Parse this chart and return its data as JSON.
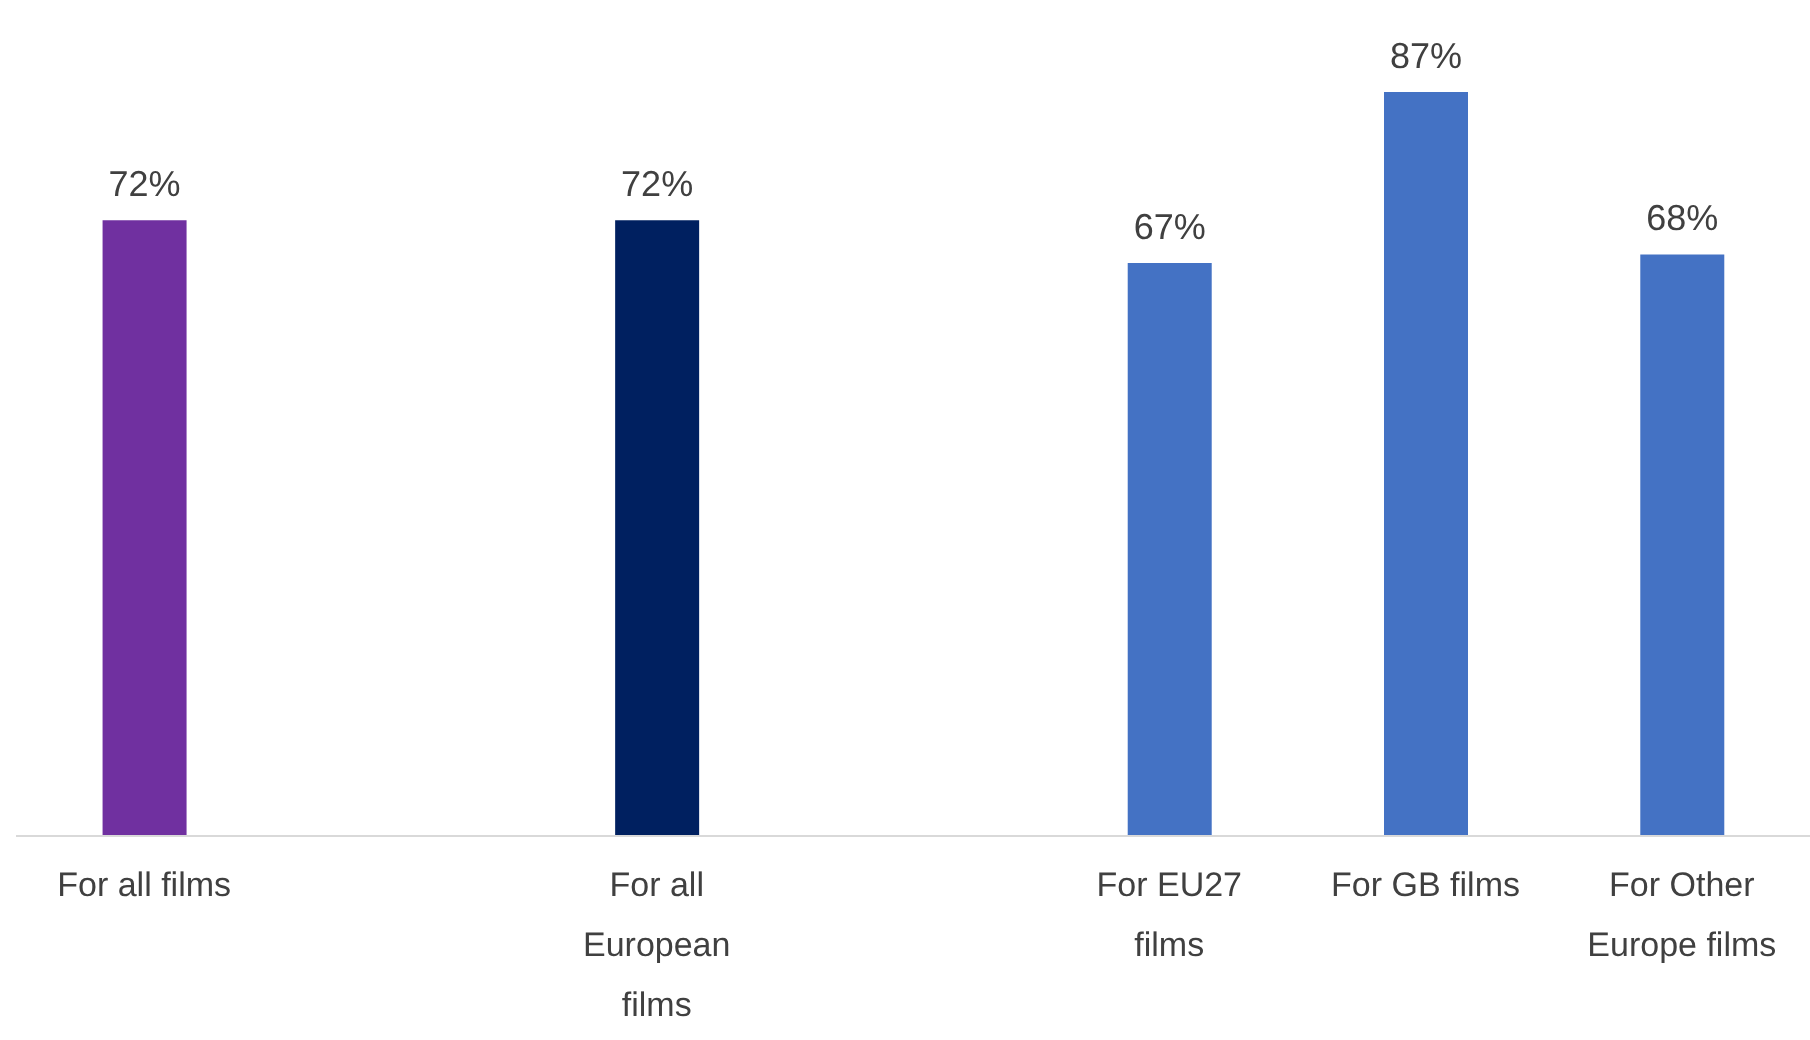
{
  "chart_data": {
    "type": "bar",
    "categories": [
      "For all films",
      null,
      "For all European films",
      null,
      "For EU27 films",
      "For GB films",
      "For Other Europe films"
    ],
    "values": [
      72,
      null,
      72,
      null,
      67,
      87,
      68
    ],
    "colors": [
      "#7030a0",
      null,
      "#002060",
      null,
      "#4472c4",
      "#4472c4",
      "#4472c4"
    ],
    "value_labels": [
      "72%",
      null,
      "72%",
      null,
      "67%",
      "87%",
      "68%"
    ]
  }
}
